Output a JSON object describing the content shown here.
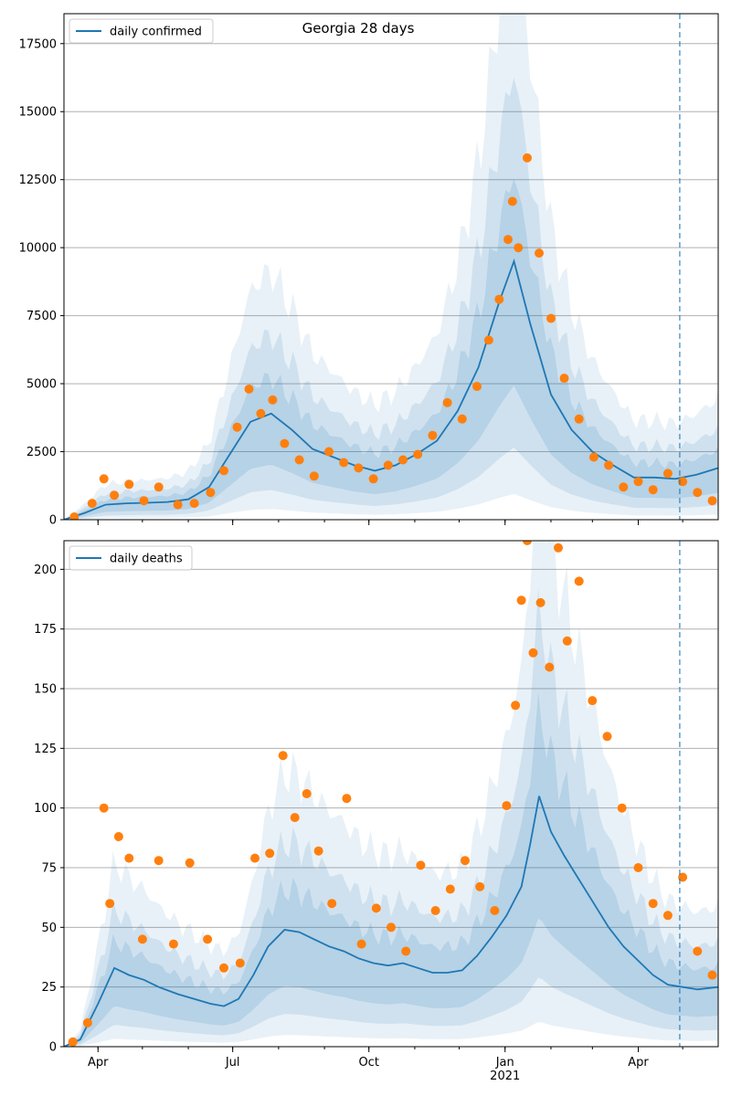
{
  "chart_data": [
    {
      "type": "line",
      "title": "Georgia 28 days",
      "legend": "top-left",
      "grid": "horizontal",
      "ylim": [
        0,
        18600
      ],
      "xlim": [
        "2020-03-09",
        "2021-05-25"
      ],
      "yticks": [
        0,
        2500,
        5000,
        7500,
        10000,
        12500,
        15000,
        17500
      ],
      "xticks": [
        {
          "date": "2020-04-01",
          "label": "Apr"
        },
        {
          "date": "2020-07-01",
          "label": "Jul"
        },
        {
          "date": "2020-10-01",
          "label": "Oct"
        },
        {
          "date": "2021-01-01",
          "label": "Jan"
        },
        {
          "date": "2021-04-01",
          "label": "Apr"
        }
      ],
      "year_label": "2021",
      "vline_date": "2021-04-29",
      "series": [
        {
          "name": "daily confirmed",
          "kind": "line",
          "color": "#1f77b4",
          "x": [
            "2020-03-09",
            "2020-03-23",
            "2020-04-06",
            "2020-04-20",
            "2020-05-04",
            "2020-05-18",
            "2020-06-01",
            "2020-06-15",
            "2020-06-29",
            "2020-07-13",
            "2020-07-27",
            "2020-08-10",
            "2020-08-24",
            "2020-09-07",
            "2020-09-21",
            "2020-10-05",
            "2020-10-19",
            "2020-11-02",
            "2020-11-16",
            "2020-11-30",
            "2020-12-14",
            "2020-12-28",
            "2021-01-07",
            "2021-01-18",
            "2021-02-01",
            "2021-02-15",
            "2021-03-01",
            "2021-03-15",
            "2021-03-29",
            "2021-04-12",
            "2021-04-26",
            "2021-05-10",
            "2021-05-25"
          ],
          "values": [
            0,
            250,
            550,
            600,
            620,
            650,
            750,
            1200,
            2400,
            3600,
            3900,
            3300,
            2600,
            2300,
            2000,
            1800,
            2000,
            2400,
            2900,
            4000,
            5600,
            8000,
            9500,
            7200,
            4600,
            3300,
            2500,
            2000,
            1550,
            1550,
            1500,
            1650,
            1900
          ]
        },
        {
          "name": "",
          "kind": "scatter",
          "color": "#ff7f0e",
          "x": [
            "2020-03-16",
            "2020-03-28",
            "2020-04-05",
            "2020-04-12",
            "2020-04-22",
            "2020-05-02",
            "2020-05-12",
            "2020-05-25",
            "2020-06-05",
            "2020-06-16",
            "2020-06-25",
            "2020-07-04",
            "2020-07-12",
            "2020-07-20",
            "2020-07-28",
            "2020-08-05",
            "2020-08-15",
            "2020-08-25",
            "2020-09-04",
            "2020-09-14",
            "2020-09-24",
            "2020-10-04",
            "2020-10-14",
            "2020-10-24",
            "2020-11-03",
            "2020-11-13",
            "2020-11-23",
            "2020-12-03",
            "2020-12-13",
            "2020-12-21",
            "2020-12-28",
            "2021-01-03",
            "2021-01-06",
            "2021-01-10",
            "2021-01-16",
            "2021-01-24",
            "2021-02-01",
            "2021-02-10",
            "2021-02-20",
            "2021-03-02",
            "2021-03-12",
            "2021-03-22",
            "2021-04-01",
            "2021-04-11",
            "2021-04-21",
            "2021-05-01",
            "2021-05-11",
            "2021-05-21"
          ],
          "values": [
            100,
            600,
            1500,
            900,
            1300,
            700,
            1200,
            550,
            600,
            1000,
            1800,
            3400,
            4800,
            3900,
            4400,
            2800,
            2200,
            1600,
            2500,
            2100,
            1900,
            1500,
            2000,
            2200,
            2400,
            3100,
            4300,
            3700,
            4900,
            6600,
            8100,
            10300,
            11700,
            10000,
            13300,
            9800,
            7400,
            5200,
            3700,
            2300,
            2000,
            1200,
            1400,
            1100,
            1700,
            1400,
            1000,
            700
          ]
        }
      ]
    },
    {
      "type": "line",
      "title": "",
      "legend": "top-left",
      "grid": "horizontal",
      "ylim": [
        0,
        212
      ],
      "xlim": [
        "2020-03-09",
        "2021-05-25"
      ],
      "yticks": [
        0,
        25,
        50,
        75,
        100,
        125,
        150,
        175,
        200
      ],
      "xticks": [
        {
          "date": "2020-04-01",
          "label": "Apr"
        },
        {
          "date": "2020-07-01",
          "label": "Jul"
        },
        {
          "date": "2020-10-01",
          "label": "Oct"
        },
        {
          "date": "2021-01-01",
          "label": "Jan"
        },
        {
          "date": "2021-04-01",
          "label": "Apr"
        }
      ],
      "year_label": "2021",
      "vline_date": "2021-04-29",
      "series": [
        {
          "name": "daily deaths",
          "kind": "line",
          "color": "#1f77b4",
          "x": [
            "2020-03-09",
            "2020-03-20",
            "2020-04-01",
            "2020-04-12",
            "2020-04-22",
            "2020-05-02",
            "2020-05-12",
            "2020-05-25",
            "2020-06-05",
            "2020-06-16",
            "2020-06-25",
            "2020-07-05",
            "2020-07-15",
            "2020-07-25",
            "2020-08-05",
            "2020-08-15",
            "2020-08-25",
            "2020-09-04",
            "2020-09-14",
            "2020-09-24",
            "2020-10-04",
            "2020-10-14",
            "2020-10-24",
            "2020-11-03",
            "2020-11-13",
            "2020-11-23",
            "2020-12-03",
            "2020-12-13",
            "2020-12-23",
            "2021-01-02",
            "2021-01-12",
            "2021-01-18",
            "2021-01-24",
            "2021-02-01",
            "2021-02-10",
            "2021-02-20",
            "2021-03-02",
            "2021-03-12",
            "2021-03-22",
            "2021-04-01",
            "2021-04-11",
            "2021-04-21",
            "2021-05-01",
            "2021-05-11",
            "2021-05-25"
          ],
          "values": [
            0,
            3,
            18,
            33,
            30,
            28,
            25,
            22,
            20,
            18,
            17,
            20,
            30,
            42,
            49,
            48,
            45,
            42,
            40,
            37,
            35,
            34,
            35,
            33,
            31,
            31,
            32,
            38,
            46,
            55,
            67,
            85,
            105,
            90,
            80,
            70,
            60,
            50,
            42,
            36,
            30,
            26,
            25,
            24,
            25
          ]
        },
        {
          "name": "",
          "kind": "scatter",
          "color": "#ff7f0e",
          "x": [
            "2020-03-15",
            "2020-03-25",
            "2020-04-05",
            "2020-04-09",
            "2020-04-15",
            "2020-04-22",
            "2020-05-01",
            "2020-05-12",
            "2020-05-22",
            "2020-06-02",
            "2020-06-14",
            "2020-06-25",
            "2020-07-06",
            "2020-07-16",
            "2020-07-26",
            "2020-08-04",
            "2020-08-12",
            "2020-08-20",
            "2020-08-28",
            "2020-09-06",
            "2020-09-16",
            "2020-09-26",
            "2020-10-06",
            "2020-10-16",
            "2020-10-26",
            "2020-11-05",
            "2020-11-15",
            "2020-11-25",
            "2020-12-05",
            "2020-12-15",
            "2020-12-25",
            "2021-01-02",
            "2021-01-08",
            "2021-01-12",
            "2021-01-16",
            "2021-01-20",
            "2021-01-25",
            "2021-01-31",
            "2021-02-06",
            "2021-02-12",
            "2021-02-20",
            "2021-03-01",
            "2021-03-11",
            "2021-03-21",
            "2021-04-01",
            "2021-04-11",
            "2021-04-21",
            "2021-05-01",
            "2021-05-11",
            "2021-05-21"
          ],
          "values": [
            2,
            10,
            100,
            60,
            88,
            79,
            45,
            78,
            43,
            77,
            45,
            33,
            35,
            79,
            81,
            122,
            96,
            106,
            82,
            60,
            104,
            43,
            58,
            50,
            40,
            76,
            57,
            66,
            78,
            67,
            57,
            101,
            143,
            187,
            212,
            165,
            186,
            159,
            209,
            170,
            195,
            145,
            130,
            100,
            75,
            60,
            55,
            71,
            40,
            30
          ]
        }
      ]
    }
  ]
}
